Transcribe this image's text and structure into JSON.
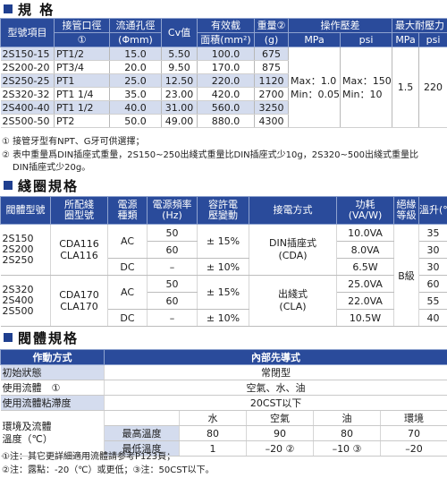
{
  "spec": {
    "title": "規 格",
    "headers": {
      "model": "型號項目",
      "port1": "接管口徑",
      "port2": "①",
      "orifice1": "流通孔徑",
      "orifice2": "(Φmm)",
      "cv": "Cv值",
      "area1": "有效截",
      "area2": "面積(mm²)",
      "weight1": "重量②",
      "weight2": "(g)",
      "pressure": "操作壓差",
      "mpa": "MPa",
      "psi": "psi",
      "maxp1": "最大耐壓力",
      "maxp_mpa": "MPa",
      "maxp_psi": "psi"
    },
    "rows": [
      {
        "model": "2S150-15",
        "port": "PT1/2",
        "orifice": "15.0",
        "cv": "5.50",
        "area": "100.0",
        "weight": "675"
      },
      {
        "model": "2S200-20",
        "port": "PT3/4",
        "orifice": "20.0",
        "cv": "9.50",
        "area": "170.0",
        "weight": "875"
      },
      {
        "model": "2S250-25",
        "port": "PT1",
        "orifice": "25.0",
        "cv": "12.50",
        "area": "220.0",
        "weight": "1120"
      },
      {
        "model": "2S320-32",
        "port": "PT1 1/4",
        "orifice": "35.0",
        "cv": "23.00",
        "area": "420.0",
        "weight": "2700"
      },
      {
        "model": "2S400-40",
        "port": "PT1 1/2",
        "orifice": "40.0",
        "cv": "31.00",
        "area": "560.0",
        "weight": "3250"
      },
      {
        "model": "2S500-50",
        "port": "PT2",
        "orifice": "50.0",
        "cv": "49.00",
        "area": "880.0",
        "weight": "4300"
      }
    ],
    "pressure_mpa1": "Max：1.0",
    "pressure_mpa2": "Min：0.05",
    "pressure_psi1": "Max：150",
    "pressure_psi2": "Min：10",
    "maxp_mpa_val": "1.5",
    "maxp_psi_val": "220",
    "note1": "① 接管牙型有NPT、G牙可供選擇；",
    "note2a": "② 表中重量爲DIN插座式重量，2S150~250出綫式重量比DIN插座式少10g，2S320~500出綫式重量比",
    "note2b": "DIN插座式少20g。"
  },
  "coil": {
    "title": "綫圈規格",
    "headers": {
      "valve": "閥體型號",
      "coil1": "所配綫",
      "coil2": "圈型號",
      "power1": "電源",
      "power2": "種類",
      "freq1": "電源頻率",
      "freq2": "(Hz)",
      "vol1": "容許電",
      "vol2": "壓變動",
      "conn": "接電方式",
      "watt1": "功耗",
      "watt2": "(VA/W)",
      "ins1": "絕緣",
      "ins2": "等級",
      "temp": "溫升(℃)"
    },
    "groups": [
      {
        "models": [
          "2S150",
          "2S200",
          "2S250"
        ],
        "coils": [
          "CDA116",
          "CLA116"
        ],
        "conn": [
          "DIN插座式",
          "(CDA)"
        ],
        "rows": [
          {
            "type": "AC",
            "freq": "50",
            "vol": "± 15%",
            "watt": "10.0VA",
            "temp": "35"
          },
          {
            "type": "",
            "freq": "60",
            "vol": "",
            "watt": "8.0VA",
            "temp": "30"
          },
          {
            "type": "DC",
            "freq": "–",
            "vol": "± 10%",
            "watt": "6.5W",
            "temp": "30"
          }
        ]
      },
      {
        "models": [
          "2S320",
          "2S400",
          "2S500"
        ],
        "coils": [
          "CDA170",
          "CLA170"
        ],
        "conn": [
          "出綫式",
          "(CLA)"
        ],
        "rows": [
          {
            "type": "AC",
            "freq": "50",
            "vol": "± 15%",
            "watt": "25.0VA",
            "temp": "60"
          },
          {
            "type": "",
            "freq": "60",
            "vol": "",
            "watt": "22.0VA",
            "temp": "55"
          },
          {
            "type": "DC",
            "freq": "–",
            "vol": "± 10%",
            "watt": "10.5W",
            "temp": "40"
          }
        ]
      }
    ],
    "insulation": "B級"
  },
  "body": {
    "title": "閥體規格",
    "h_left": "作動方式",
    "h_right": "內部先導式",
    "rows": [
      {
        "label": "初始狀態",
        "value": "常閉型"
      },
      {
        "label": "使用流體　①",
        "value": "空氣、水、油"
      },
      {
        "label": "使用流體粘滯度",
        "value": "20CST以下"
      }
    ],
    "env_label1": "環境及流體",
    "env_label2": "溫度（℃）",
    "env_cols": [
      "水",
      "空氣",
      "油",
      "環境"
    ],
    "env_max_label": "最高溫度",
    "env_max": [
      "80",
      "90",
      "80",
      "70"
    ],
    "env_min_label": "最低溫度",
    "env_min": [
      "1",
      "–20 ②",
      "–10 ③",
      "–20"
    ],
    "note1": "①注：其它更詳細適用流體請参考P123頁；",
    "note2": "②注：露點：-20（℃）或更低；③注：50CST以下。"
  }
}
